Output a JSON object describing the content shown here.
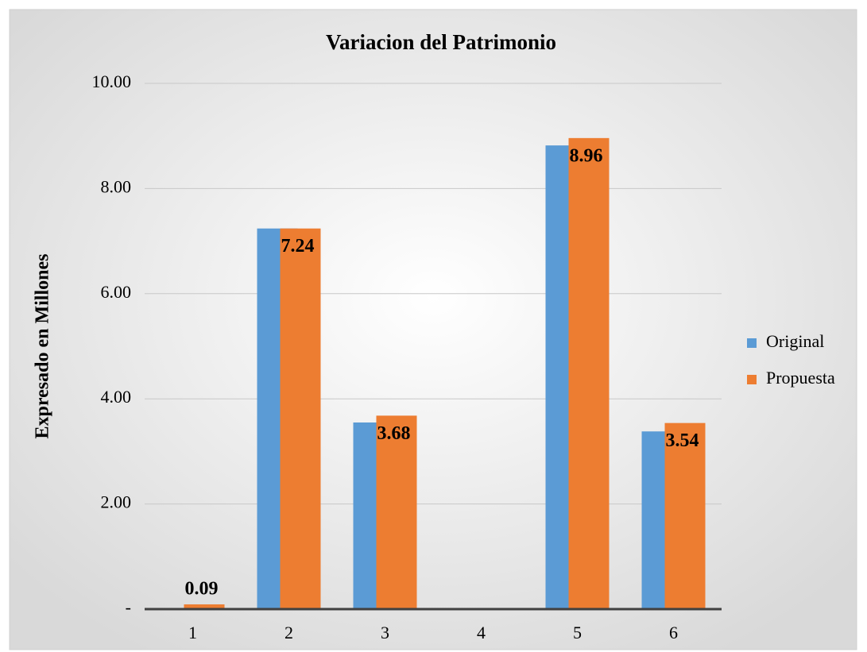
{
  "chart_data": {
    "type": "bar",
    "title": "Variacion del Patrimonio",
    "y_label": "Expresado en Millones",
    "categories": [
      "1",
      "2",
      "3",
      "4",
      "5",
      "6"
    ],
    "series": [
      {
        "name": "Original",
        "color": "#5b9bd5",
        "values": [
          0,
          7.24,
          3.55,
          null,
          8.82,
          3.38
        ]
      },
      {
        "name": "Propuesta",
        "color": "#ed7d31",
        "values": [
          0.09,
          7.24,
          3.68,
          null,
          8.96,
          3.54
        ]
      }
    ],
    "data_labels_series": "Propuesta",
    "ylim": [
      0,
      10
    ],
    "yticks": [
      {
        "value": 0,
        "label": "-"
      },
      {
        "value": 2,
        "label": "2.00"
      },
      {
        "value": 4,
        "label": "4.00"
      },
      {
        "value": 6,
        "label": "6.00"
      },
      {
        "value": 8,
        "label": "8.00"
      },
      {
        "value": 10,
        "label": "10.00"
      }
    ],
    "grid": true,
    "legend": "right"
  }
}
